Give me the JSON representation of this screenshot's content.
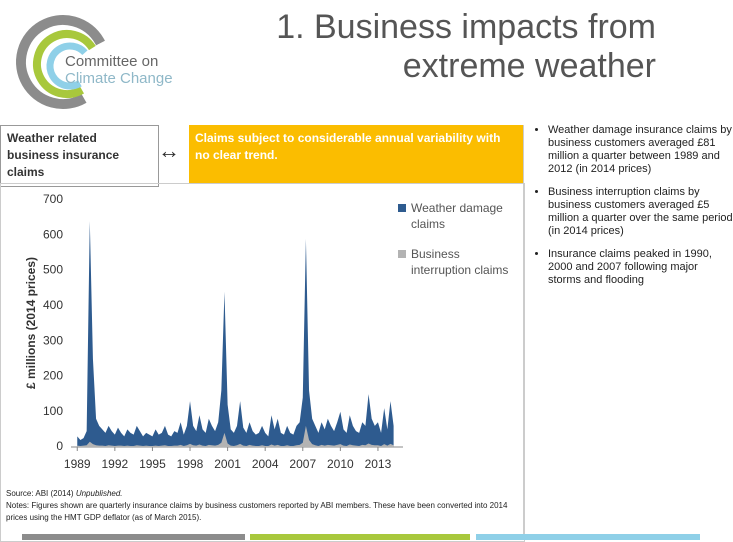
{
  "title_lines": [
    "1. Business impacts from",
    "extreme weather"
  ],
  "logo_lines": [
    "Committee on",
    "Climate Change"
  ],
  "left_header": "Weather related business insurance claims",
  "arrow": "↔",
  "highlight": "Claims subject to considerable annual variability with no clear trend.",
  "bullets": [
    "Weather damage insurance claims by business customers averaged £81 million a quarter between 1989 and 2012 (in 2014 prices)",
    "Business interruption claims by business customers averaged £5 million a quarter over the same period (in 2014 prices)",
    "Insurance claims peaked in 1990, 2000 and 2007 following major storms and flooding"
  ],
  "source_prefix": "Source: ABI (2014)",
  "source_italic": "Unpublished.",
  "notes": "Notes: Figures shown are quarterly insurance claims by business customers reported by ABI members. These have been converted into 2014 prices using the HMT GDP deflator (as of March 2015).",
  "chart_data": {
    "type": "area",
    "y_label": "£ millions (2014 prices)",
    "x": [
      1989,
      1989.25,
      1989.5,
      1989.75,
      1990,
      1990.25,
      1990.5,
      1990.75,
      1991,
      1991.25,
      1991.5,
      1991.75,
      1992,
      1992.25,
      1992.5,
      1992.75,
      1993,
      1993.25,
      1993.5,
      1993.75,
      1994,
      1994.25,
      1994.5,
      1994.75,
      1995,
      1995.25,
      1995.5,
      1995.75,
      1996,
      1996.25,
      1996.5,
      1996.75,
      1997,
      1997.25,
      1997.5,
      1997.75,
      1998,
      1998.25,
      1998.5,
      1998.75,
      1999,
      1999.25,
      1999.5,
      1999.75,
      2000,
      2000.25,
      2000.5,
      2000.75,
      2001,
      2001.25,
      2001.5,
      2001.75,
      2002,
      2002.25,
      2002.5,
      2002.75,
      2003,
      2003.25,
      2003.5,
      2003.75,
      2004,
      2004.25,
      2004.5,
      2004.75,
      2005,
      2005.25,
      2005.5,
      2005.75,
      2006,
      2006.25,
      2006.5,
      2006.75,
      2007,
      2007.25,
      2007.5,
      2007.75,
      2008,
      2008.25,
      2008.5,
      2008.75,
      2009,
      2009.25,
      2009.5,
      2009.75,
      2010,
      2010.25,
      2010.5,
      2010.75,
      2011,
      2011.25,
      2011.5,
      2011.75,
      2012,
      2012.25,
      2012.5,
      2012.75,
      2013,
      2013.25,
      2013.5,
      2013.75,
      2014,
      2014.25
    ],
    "series": [
      {
        "name": "Weather damage claims",
        "color": "#2e5b8f",
        "values": [
          30,
          20,
          25,
          45,
          640,
          250,
          80,
          60,
          50,
          40,
          60,
          45,
          35,
          55,
          40,
          30,
          50,
          40,
          35,
          60,
          45,
          30,
          40,
          35,
          30,
          50,
          35,
          40,
          60,
          35,
          30,
          45,
          40,
          70,
          35,
          60,
          130,
          60,
          45,
          90,
          50,
          40,
          80,
          60,
          45,
          70,
          160,
          440,
          120,
          50,
          40,
          60,
          130,
          55,
          40,
          70,
          45,
          35,
          40,
          60,
          40,
          30,
          90,
          50,
          80,
          40,
          35,
          60,
          40,
          35,
          60,
          70,
          140,
          590,
          160,
          80,
          60,
          40,
          70,
          50,
          80,
          60,
          45,
          70,
          100,
          50,
          40,
          90,
          60,
          45,
          40,
          70,
          60,
          150,
          80,
          60,
          70,
          40,
          110,
          50,
          130,
          60
        ]
      },
      {
        "name": "Business interruption claims",
        "color": "#b3b3b3",
        "values": [
          4,
          3,
          4,
          5,
          15,
          8,
          5,
          4,
          4,
          3,
          5,
          4,
          3,
          4,
          4,
          3,
          4,
          3,
          3,
          5,
          4,
          3,
          4,
          3,
          3,
          4,
          3,
          4,
          5,
          3,
          3,
          4,
          4,
          6,
          3,
          5,
          9,
          5,
          4,
          7,
          4,
          3,
          6,
          5,
          4,
          6,
          12,
          40,
          10,
          4,
          3,
          5,
          9,
          4,
          3,
          6,
          4,
          3,
          3,
          5,
          3,
          3,
          7,
          4,
          6,
          3,
          3,
          5,
          3,
          3,
          5,
          6,
          12,
          60,
          20,
          8,
          5,
          3,
          6,
          4,
          6,
          5,
          4,
          6,
          8,
          4,
          3,
          7,
          5,
          4,
          3,
          6,
          5,
          10,
          6,
          5,
          5,
          3,
          8,
          4,
          9,
          5
        ]
      }
    ],
    "xlim": [
      1988.5,
      2015
    ],
    "xticks": [
      1989,
      1992,
      1995,
      1998,
      2001,
      2004,
      2007,
      2010,
      2013
    ],
    "ylim": [
      0,
      700
    ],
    "yticks": [
      0,
      100,
      200,
      300,
      400,
      500,
      600,
      700
    ]
  }
}
